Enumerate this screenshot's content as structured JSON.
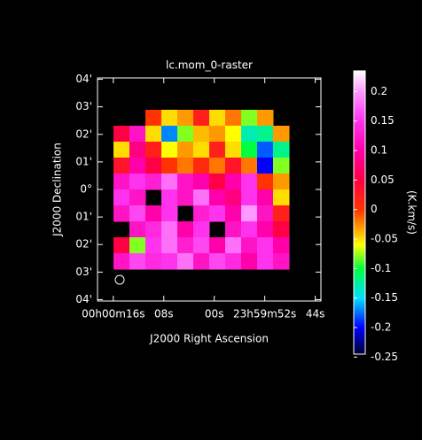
{
  "chart_data": {
    "type": "heatmap",
    "title": "lc.mom_0-raster",
    "xlabel": "J2000 Right Ascension",
    "ylabel": "J2000 Declination",
    "colorbar_label": "(K.km/s)",
    "xlim": [
      18.5,
      -16.9
    ],
    "ylim": [
      -4.05,
      4.05
    ],
    "xticks": [
      {
        "value": 16,
        "label": "00h00m16s"
      },
      {
        "value": 8,
        "label": "08s"
      },
      {
        "value": 0,
        "label": "00s"
      },
      {
        "value": -8,
        "label": "23h59m52s"
      },
      {
        "value": -16,
        "label": "44s"
      }
    ],
    "yticks": [
      {
        "value": 4,
        "label": "04'"
      },
      {
        "value": 3,
        "label": "03'"
      },
      {
        "value": 2,
        "label": "02'"
      },
      {
        "value": 1,
        "label": "01'"
      },
      {
        "value": 0,
        "label": "0°"
      },
      {
        "value": -1,
        "label": "01'"
      },
      {
        "value": -2,
        "label": "02'"
      },
      {
        "value": -3,
        "label": "03'"
      },
      {
        "value": -4,
        "label": "04'"
      }
    ],
    "clim": [
      -0.245,
      0.235
    ],
    "cticks": [
      0.2,
      0.15,
      0.1,
      0.05,
      0,
      -0.05,
      -0.1,
      -0.15,
      -0.2,
      -0.25
    ],
    "colorscale": [
      [
        -0.245,
        "#000033"
      ],
      [
        -0.2,
        "#0000ff"
      ],
      [
        -0.15,
        "#00e0ff"
      ],
      [
        -0.1,
        "#00ff40"
      ],
      [
        -0.06,
        "#ffff00"
      ],
      [
        -0.03,
        "#ff9900"
      ],
      [
        0.0,
        "#ff3300"
      ],
      [
        0.05,
        "#ff0044"
      ],
      [
        0.1,
        "#ff00aa"
      ],
      [
        0.15,
        "#ff33ee"
      ],
      [
        0.2,
        "#ff99ff"
      ],
      [
        0.235,
        "#ffffff"
      ]
    ],
    "values": [
      [
        null,
        null,
        null,
        null,
        null,
        null,
        null,
        null,
        null,
        null,
        null,
        null,
        null,
        null
      ],
      [
        null,
        null,
        null,
        null,
        null,
        null,
        null,
        null,
        null,
        null,
        null,
        null,
        null,
        null
      ],
      [
        null,
        null,
        null,
        0.0,
        -0.05,
        -0.03,
        0.02,
        -0.05,
        -0.02,
        -0.08,
        -0.03,
        null,
        null,
        null
      ],
      [
        null,
        0.05,
        0.12,
        -0.05,
        -0.17,
        -0.08,
        -0.04,
        -0.03,
        -0.06,
        -0.13,
        -0.12,
        -0.03,
        null,
        null
      ],
      [
        null,
        -0.05,
        0.08,
        0.02,
        -0.06,
        -0.03,
        -0.05,
        0.02,
        -0.05,
        -0.1,
        -0.18,
        -0.12,
        null,
        null
      ],
      [
        null,
        0.03,
        0.1,
        0.05,
        0.0,
        -0.02,
        0.01,
        -0.02,
        0.03,
        -0.02,
        -0.2,
        -0.08,
        null,
        null
      ],
      [
        null,
        0.12,
        0.15,
        0.13,
        0.18,
        0.12,
        0.1,
        0.05,
        0.1,
        0.15,
        0.0,
        -0.03,
        null,
        null
      ],
      [
        null,
        0.15,
        0.12,
        null,
        0.15,
        0.12,
        0.18,
        0.1,
        0.08,
        0.15,
        0.1,
        -0.05,
        null,
        null
      ],
      [
        null,
        0.12,
        0.16,
        0.1,
        0.15,
        null,
        0.13,
        0.15,
        0.1,
        0.2,
        0.12,
        0.02,
        null,
        null
      ],
      [
        null,
        null,
        0.12,
        0.14,
        0.18,
        0.1,
        0.15,
        null,
        0.12,
        0.15,
        0.1,
        0.05,
        null,
        null
      ],
      [
        null,
        0.05,
        -0.08,
        0.15,
        0.18,
        0.13,
        0.16,
        0.1,
        0.18,
        0.12,
        0.15,
        0.1,
        null,
        null
      ],
      [
        null,
        0.12,
        0.16,
        0.14,
        0.15,
        0.18,
        0.12,
        0.16,
        0.14,
        0.1,
        0.15,
        0.12,
        null,
        null
      ],
      [
        null,
        null,
        null,
        null,
        null,
        null,
        null,
        null,
        null,
        null,
        null,
        null,
        null,
        null
      ],
      [
        null,
        null,
        null,
        null,
        null,
        null,
        null,
        null,
        null,
        null,
        null,
        null,
        null,
        null
      ]
    ]
  }
}
